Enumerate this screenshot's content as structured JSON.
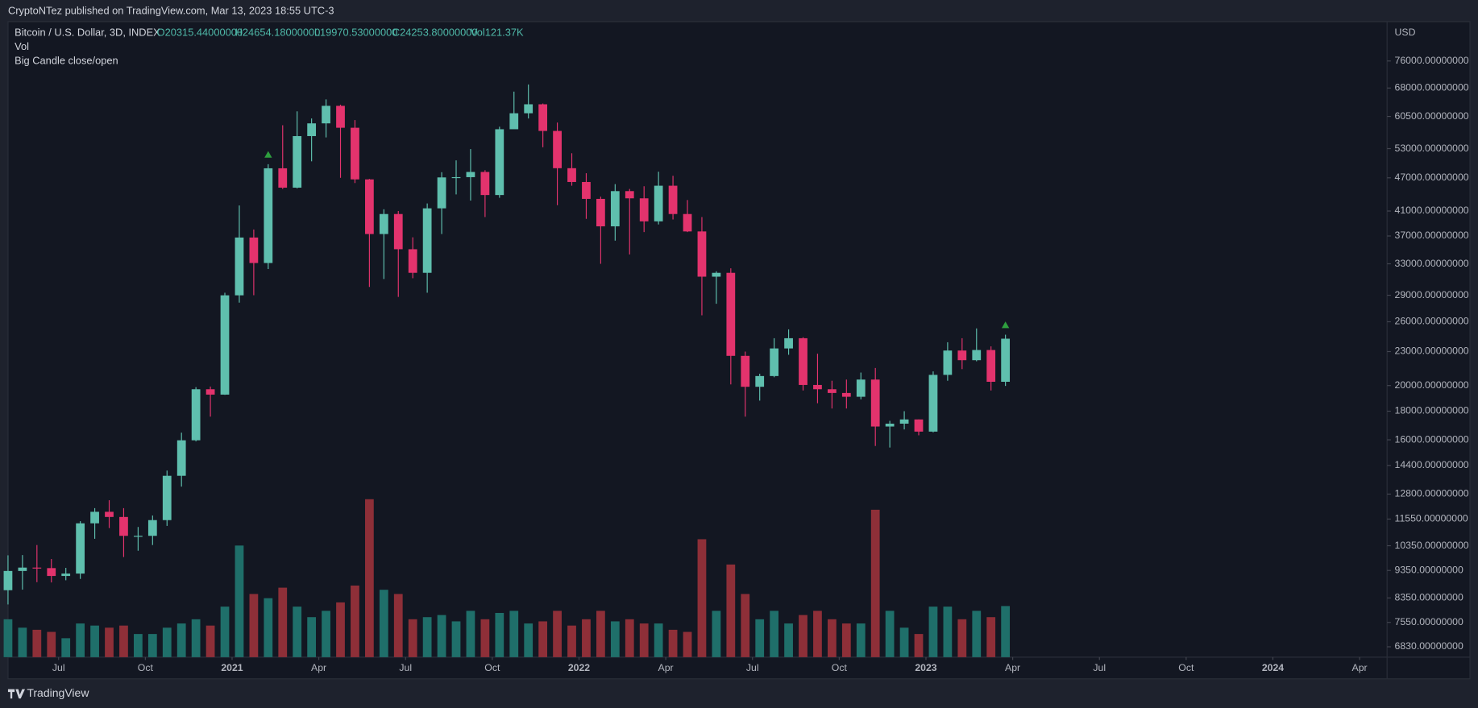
{
  "header": {
    "text": "CryptoNTez published on TradingView.com, Mar 13, 2023 18:55 UTC-3"
  },
  "chart_data": {
    "type": "candlestick",
    "legend": {
      "symbol": "Bitcoin / U.S. Dollar, 3D, INDEX",
      "open": "O20315.44000000",
      "high": "H24654.18000000",
      "low": "L19970.53000000",
      "close": "C24253.80000000",
      "volume": "Vol121.37K",
      "volume_pane": "Vol",
      "indicator": "Big Candle close/open"
    },
    "currency": "USD",
    "log_scale": true,
    "grid": false,
    "up_color": "#5fbfae",
    "down_color": "#e3336d",
    "volume_up_color": "#1f6f6a",
    "volume_down_color": "#8e2f38",
    "signal_color": "#2e9e3e",
    "open": [
      8620,
      9330,
      9460,
      9440,
      9140,
      9230,
      11350,
      11900,
      11650,
      10780,
      10780,
      11500,
      13800,
      15970,
      19700,
      19270,
      28990,
      36770,
      33110,
      48880,
      45140,
      55800,
      58800,
      63200,
      57750,
      46700,
      37300,
      40500,
      35040,
      31800,
      41460,
      47080,
      47130,
      48150,
      43790,
      57400,
      61300,
      63600,
      57000,
      48900,
      46200,
      43100,
      38500,
      44500,
      43200,
      39300,
      45500,
      40500,
      37700,
      31300,
      31800,
      22600,
      19900,
      20800,
      23300,
      24300,
      20050,
      19700,
      19400,
      19100,
      20500,
      16900,
      17100,
      17400,
      16550,
      20900,
      23100,
      22200,
      23150,
      20315
    ],
    "high": [
      9950,
      9960,
      10380,
      9800,
      9450,
      11450,
      12080,
      12480,
      12080,
      11180,
      11720,
      14100,
      16480,
      19870,
      19920,
      29300,
      41950,
      38000,
      49700,
      58350,
      61780,
      60000,
      64900,
      63500,
      59600,
      46800,
      41300,
      41000,
      36800,
      42300,
      48100,
      50500,
      52900,
      48500,
      58000,
      67000,
      69000,
      63800,
      59000,
      52000,
      47900,
      43500,
      45800,
      44900,
      45400,
      48200,
      47400,
      42900,
      40000,
      32000,
      32400,
      23000,
      21000,
      24300,
      25200,
      24400,
      22800,
      20400,
      20500,
      21100,
      21500,
      17300,
      18000,
      17400,
      21200,
      23900,
      24300,
      25300,
      23500,
      24654
    ],
    "low": [
      8130,
      8640,
      8910,
      8900,
      8980,
      9030,
      10650,
      11130,
      9880,
      10140,
      10380,
      11230,
      13200,
      15900,
      17600,
      19250,
      28130,
      29000,
      32300,
      44900,
      45000,
      50300,
      55500,
      47000,
      46000,
      30000,
      31000,
      28800,
      31100,
      29300,
      37300,
      43900,
      42800,
      40000,
      43300,
      58000,
      60000,
      53300,
      42000,
      45500,
      39700,
      33000,
      36300,
      34300,
      37600,
      38800,
      39600,
      37600,
      26700,
      28000,
      20100,
      17600,
      18800,
      20700,
      22700,
      19600,
      18600,
      18200,
      18200,
      18900,
      15600,
      15500,
      16700,
      16300,
      16500,
      20400,
      21400,
      22100,
      19600,
      19970
    ],
    "close": [
      9330,
      9460,
      9440,
      9140,
      9230,
      11350,
      11900,
      11650,
      10780,
      10780,
      11500,
      13800,
      15970,
      19700,
      19270,
      28990,
      36770,
      33110,
      48880,
      45140,
      55800,
      58800,
      63200,
      57750,
      46700,
      37300,
      40500,
      35040,
      31800,
      41460,
      47080,
      47130,
      48150,
      43790,
      57400,
      61300,
      63600,
      57000,
      48900,
      46200,
      43100,
      38500,
      44500,
      43200,
      39300,
      45500,
      40500,
      37700,
      31300,
      31800,
      22600,
      19900,
      20800,
      23300,
      24300,
      20050,
      19700,
      19400,
      19100,
      20500,
      16900,
      17100,
      17400,
      16550,
      20900,
      23100,
      22200,
      23150,
      20315,
      24253
    ],
    "volume": [
      90,
      70,
      65,
      60,
      45,
      80,
      75,
      70,
      75,
      55,
      55,
      70,
      80,
      90,
      75,
      120,
      265,
      150,
      140,
      165,
      120,
      95,
      110,
      130,
      170,
      375,
      160,
      150,
      90,
      95,
      100,
      85,
      110,
      90,
      105,
      110,
      80,
      85,
      110,
      75,
      90,
      110,
      85,
      90,
      80,
      80,
      65,
      60,
      280,
      110,
      220,
      150,
      90,
      110,
      80,
      100,
      110,
      90,
      80,
      80,
      350,
      110,
      70,
      55,
      120,
      120,
      90,
      110,
      95,
      121.37
    ],
    "volume_ylim": [
      0,
      380
    ],
    "signals": [
      18,
      69
    ],
    "ylim": [
      6545,
      89000
    ],
    "yticks": [
      {
        "value": 6830,
        "label": "6830.00000000"
      },
      {
        "value": 7550,
        "label": "7550.00000000"
      },
      {
        "value": 8350,
        "label": "8350.00000000"
      },
      {
        "value": 9350,
        "label": "9350.00000000"
      },
      {
        "value": 10350,
        "label": "10350.00000000"
      },
      {
        "value": 11550,
        "label": "11550.00000000"
      },
      {
        "value": 12800,
        "label": "12800.00000000"
      },
      {
        "value": 14400,
        "label": "14400.00000000"
      },
      {
        "value": 16000,
        "label": "16000.00000000"
      },
      {
        "value": 18000,
        "label": "18000.00000000"
      },
      {
        "value": 20000,
        "label": "20000.00000000"
      },
      {
        "value": 23000,
        "label": "23000.00000000"
      },
      {
        "value": 26000,
        "label": "26000.00000000"
      },
      {
        "value": 29000,
        "label": "29000.00000000"
      },
      {
        "value": 33000,
        "label": "33000.00000000"
      },
      {
        "value": 37000,
        "label": "37000.00000000"
      },
      {
        "value": 41000,
        "label": "41000.00000000"
      },
      {
        "value": 47000,
        "label": "47000.00000000"
      },
      {
        "value": 53000,
        "label": "53000.00000000"
      },
      {
        "value": 60500,
        "label": "60500.00000000"
      },
      {
        "value": 68000,
        "label": "68000.00000000"
      },
      {
        "value": 76000,
        "label": "76000.00000000"
      }
    ],
    "xlim": [
      0.5,
      95.9
    ],
    "xticks": [
      {
        "value": 4,
        "label": "Jul"
      },
      {
        "value": 10,
        "label": "Oct"
      },
      {
        "value": 16,
        "label": "2021"
      },
      {
        "value": 22,
        "label": "Apr"
      },
      {
        "value": 28,
        "label": "Jul"
      },
      {
        "value": 34,
        "label": "Oct"
      },
      {
        "value": 40,
        "label": "2022"
      },
      {
        "value": 46,
        "label": "Apr"
      },
      {
        "value": 52,
        "label": "Jul"
      },
      {
        "value": 58,
        "label": "Oct"
      },
      {
        "value": 64,
        "label": "2023"
      },
      {
        "value": 70,
        "label": "Apr"
      },
      {
        "value": 76,
        "label": "Jul"
      },
      {
        "value": 82,
        "label": "Oct"
      },
      {
        "value": 88,
        "label": "2024"
      },
      {
        "value": 94,
        "label": "Apr"
      }
    ]
  },
  "footer": {
    "brand": "TradingView"
  }
}
